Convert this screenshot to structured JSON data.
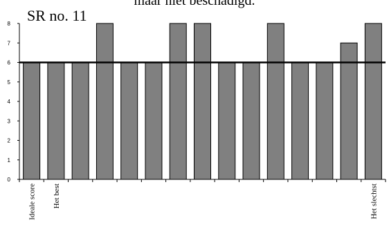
{
  "chart_data": {
    "type": "bar",
    "title": "maar niet beschadigd.",
    "subtitle": "SR no. 11",
    "categories": [
      "Ideale score",
      "Het best",
      "",
      "",
      "",
      "",
      "",
      "",
      "",
      "",
      "",
      "",
      "",
      "",
      "Het slechtst"
    ],
    "values": [
      6,
      6,
      6,
      8,
      6,
      6,
      8,
      8,
      6,
      6,
      8,
      6,
      6,
      7,
      8
    ],
    "reference_line": 6,
    "ylim": [
      0,
      8
    ],
    "yticks": [
      "0",
      "1",
      "2",
      "3",
      "4",
      "5",
      "6",
      "7",
      "8"
    ],
    "xlabel": "",
    "ylabel": "",
    "grid": false,
    "bar_color": "#808080"
  }
}
